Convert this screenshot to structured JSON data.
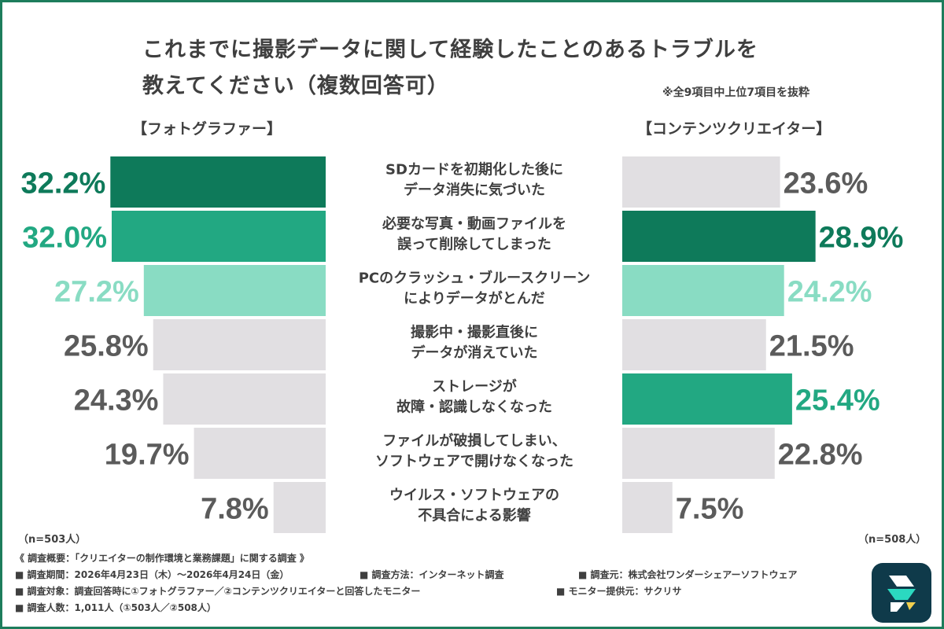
{
  "title_line1": "これまでに撮影データに関して経験したことのあるトラブルを",
  "title_line2": "教えてください（複数回答可）",
  "note": "※全9項目中上位7項目を抜粋",
  "left_group": "【フォトグラファー】",
  "right_group": "【コンテンツクリエイター】",
  "left_n": "（n=503人）",
  "right_n": "（n=508人）",
  "chart_data": {
    "type": "bar",
    "orientation": "horizontal-butterfly",
    "categories": [
      [
        "SDカードを初期化した後に",
        "データ消失に気づいた"
      ],
      [
        "必要な写真・動画ファイルを",
        "誤って削除してしまった"
      ],
      [
        "PCのクラッシュ・ブルースクリーン",
        "によりデータがとんだ"
      ],
      [
        "撮影中・撮影直後に",
        "データが消えていた"
      ],
      [
        "ストレージが",
        "故障・認識しなくなった"
      ],
      [
        "ファイルが破損してしまい、",
        "ソフトウェアで開けなくなった"
      ],
      [
        "ウイルス・ソフトウェアの",
        "不具合による影響"
      ]
    ],
    "series": [
      {
        "name": "【フォトグラファー】",
        "values": [
          32.2,
          32.0,
          27.2,
          25.8,
          24.3,
          19.7,
          7.8
        ],
        "labels": [
          "32.2%",
          "32.0%",
          "27.2%",
          "25.8%",
          "24.3%",
          "19.7%",
          "7.8%"
        ]
      },
      {
        "name": "【コンテンツクリエイター】",
        "values": [
          23.6,
          28.9,
          24.2,
          21.5,
          25.4,
          22.8,
          7.5
        ],
        "labels": [
          "23.6%",
          "28.9%",
          "24.2%",
          "21.5%",
          "25.4%",
          "22.8%",
          "7.5%"
        ]
      }
    ],
    "unit": "%",
    "colors": {
      "rank1": "#0e7a5a",
      "rank2": "#22a882",
      "rank3": "#89dcc3",
      "other": "#e1dfe2",
      "other_text": "#5b5b5b"
    },
    "left_ranks": [
      1,
      2,
      3,
      0,
      0,
      0,
      0
    ],
    "right_ranks": [
      0,
      1,
      3,
      0,
      2,
      0,
      0
    ]
  },
  "survey": {
    "header": "《 調査概要：「クリエイターの制作環境と業務課題」に関する調査 》",
    "period": "■ 調査期間：2026年4月23日（木）～2026年4月24日（金）",
    "method": "■ 調査方法：インターネット調査",
    "source": "■ 調査元：株式会社ワンダーシェアーソフトウェア",
    "target": "■ 調査対象：調査回答時に①フォトグラファー／②コンテンツクリエイターと回答したモニター",
    "provider": "■ モニター提供元：サクリサ",
    "count": "■ 調査人数：1,011人（①503人／②508人）"
  },
  "logo_icon": "filmora-logo-icon"
}
